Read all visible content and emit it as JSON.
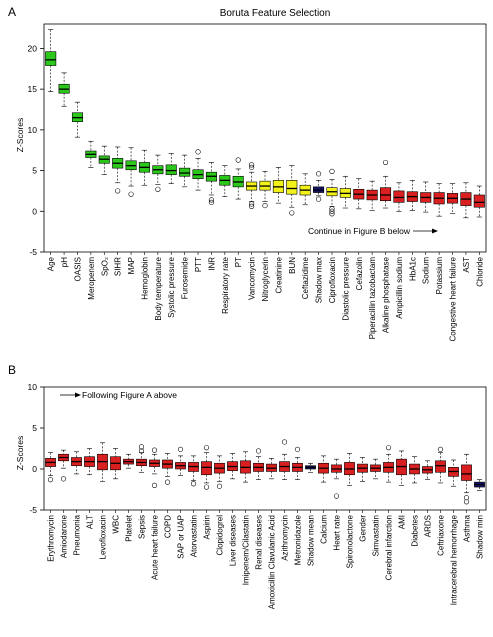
{
  "colors": {
    "green": "#2bc81b",
    "yellow": "#f2f21a",
    "red": "#d91f1f",
    "blue": "#12126b",
    "axis": "#000000"
  },
  "chart_data": [
    {
      "type": "box",
      "panel_label": "A",
      "title": "Boruta Feature Selection",
      "ylabel": "Z-Scores",
      "ylim": [
        -5,
        23
      ],
      "yticks": [
        -5,
        0,
        5,
        10,
        15,
        20
      ],
      "annotation": "Continue in Figure B below",
      "boxes": [
        {
          "name": "Age",
          "q1": 17.9,
          "median": 18.6,
          "q3": 19.6,
          "low": 14.7,
          "high": 22.3,
          "color": "green",
          "outliers": []
        },
        {
          "name": "pH",
          "q1": 14.5,
          "median": 15.0,
          "q3": 15.6,
          "low": 12.9,
          "high": 17.0,
          "color": "green",
          "outliers": []
        },
        {
          "name": "OASIS",
          "q1": 11.0,
          "median": 11.5,
          "q3": 12.1,
          "low": 9.1,
          "high": 13.4,
          "color": "green",
          "outliers": []
        },
        {
          "name": "Meropenem",
          "q1": 6.6,
          "median": 7.0,
          "q3": 7.4,
          "low": 5.4,
          "high": 8.6,
          "color": "green",
          "outliers": []
        },
        {
          "name": "SpO₂",
          "q1": 5.9,
          "median": 6.4,
          "q3": 6.8,
          "low": 4.5,
          "high": 8.0,
          "color": "green",
          "outliers": []
        },
        {
          "name": "SIHR",
          "q1": 5.3,
          "median": 5.9,
          "q3": 6.5,
          "low": 3.5,
          "high": 7.9,
          "color": "green",
          "outliers": [
            2.5
          ]
        },
        {
          "name": "MAP",
          "q1": 5.1,
          "median": 5.6,
          "q3": 6.2,
          "low": 3.1,
          "high": 7.8,
          "color": "green",
          "outliers": [
            2.1
          ]
        },
        {
          "name": "Hemoglobin",
          "q1": 4.8,
          "median": 5.4,
          "q3": 6.0,
          "low": 3.2,
          "high": 7.5,
          "color": "green",
          "outliers": []
        },
        {
          "name": "Body temperature",
          "q1": 4.6,
          "median": 5.1,
          "q3": 5.6,
          "low": 3.3,
          "high": 6.9,
          "color": "green",
          "outliers": [
            2.7
          ]
        },
        {
          "name": "Systolic pressure",
          "q1": 4.5,
          "median": 5.0,
          "q3": 5.7,
          "low": 3.4,
          "high": 7.1,
          "color": "green",
          "outliers": []
        },
        {
          "name": "Furosemide",
          "q1": 4.3,
          "median": 4.7,
          "q3": 5.3,
          "low": 3.0,
          "high": 6.9,
          "color": "green",
          "outliers": []
        },
        {
          "name": "PTT",
          "q1": 4.0,
          "median": 4.5,
          "q3": 5.1,
          "low": 2.6,
          "high": 6.5,
          "color": "green",
          "outliers": [
            7.3
          ]
        },
        {
          "name": "INR",
          "q1": 3.7,
          "median": 4.3,
          "q3": 4.8,
          "low": 2.0,
          "high": 6.0,
          "color": "green",
          "outliers": [
            1.4,
            1.1
          ]
        },
        {
          "name": "Respiratory rate",
          "q1": 3.2,
          "median": 3.8,
          "q3": 4.4,
          "low": 1.8,
          "high": 5.6,
          "color": "green",
          "outliers": []
        },
        {
          "name": "PT",
          "q1": 3.0,
          "median": 3.6,
          "q3": 4.3,
          "low": 1.5,
          "high": 5.2,
          "color": "green",
          "outliers": [
            6.3
          ]
        },
        {
          "name": "Vancomycin",
          "q1": 2.6,
          "median": 3.1,
          "q3": 3.6,
          "low": 1.2,
          "high": 4.8,
          "color": "yellow",
          "outliers": [
            5.4,
            5.7,
            0.9,
            0.6
          ]
        },
        {
          "name": "Nitroglycerin",
          "q1": 2.6,
          "median": 3.1,
          "q3": 3.7,
          "low": 1.2,
          "high": 4.9,
          "color": "yellow",
          "outliers": [
            0.7
          ]
        },
        {
          "name": "Creatinine",
          "q1": 2.3,
          "median": 3.0,
          "q3": 3.8,
          "low": 1.0,
          "high": 5.4,
          "color": "yellow",
          "outliers": []
        },
        {
          "name": "BUN",
          "q1": 2.1,
          "median": 2.8,
          "q3": 3.8,
          "low": 0.5,
          "high": 5.6,
          "color": "yellow",
          "outliers": [
            -0.2
          ]
        },
        {
          "name": "Ceftazidime",
          "q1": 2.0,
          "median": 2.6,
          "q3": 3.2,
          "low": 0.8,
          "high": 4.6,
          "color": "yellow",
          "outliers": []
        },
        {
          "name": "Shadow max",
          "q1": 2.3,
          "median": 2.6,
          "q3": 3.0,
          "low": 1.9,
          "high": 3.8,
          "color": "blue",
          "outliers": [
            1.5,
            4.6
          ]
        },
        {
          "name": "Ciprofloxacin",
          "q1": 1.9,
          "median": 2.4,
          "q3": 2.9,
          "low": 0.6,
          "high": 3.9,
          "color": "yellow",
          "outliers": [
            4.9,
            0.3,
            0.0,
            -0.3
          ]
        },
        {
          "name": "Diastolic pressure",
          "q1": 1.7,
          "median": 2.2,
          "q3": 2.8,
          "low": 0.4,
          "high": 4.3,
          "color": "yellow",
          "outliers": []
        },
        {
          "name": "Cefazolin",
          "q1": 1.5,
          "median": 2.1,
          "q3": 2.7,
          "low": 0.3,
          "high": 4.0,
          "color": "red",
          "outliers": []
        },
        {
          "name": "Piperacillin tazobactam",
          "q1": 1.4,
          "median": 2.0,
          "q3": 2.6,
          "low": 0.1,
          "high": 3.7,
          "color": "red",
          "outliers": []
        },
        {
          "name": "Alkaline phosphatase",
          "q1": 1.3,
          "median": 2.0,
          "q3": 2.9,
          "low": 0.4,
          "high": 4.3,
          "color": "red",
          "outliers": [
            6.0
          ]
        },
        {
          "name": "Ampicillin sodium",
          "q1": 1.1,
          "median": 1.7,
          "q3": 2.5,
          "low": 0.0,
          "high": 3.5,
          "color": "red",
          "outliers": []
        },
        {
          "name": "HbA1c",
          "q1": 1.2,
          "median": 1.8,
          "q3": 2.4,
          "low": 0.1,
          "high": 3.8,
          "color": "red",
          "outliers": []
        },
        {
          "name": "Sodium",
          "q1": 1.1,
          "median": 1.7,
          "q3": 2.3,
          "low": -0.1,
          "high": 3.6,
          "color": "red",
          "outliers": []
        },
        {
          "name": "Potassium",
          "q1": 0.9,
          "median": 1.6,
          "q3": 2.3,
          "low": -0.6,
          "high": 3.4,
          "color": "red",
          "outliers": []
        },
        {
          "name": "Congestive heart failure",
          "q1": 1.0,
          "median": 1.6,
          "q3": 2.2,
          "low": -0.3,
          "high": 3.4,
          "color": "red",
          "outliers": []
        },
        {
          "name": "AST",
          "q1": 0.7,
          "median": 1.5,
          "q3": 2.3,
          "low": -0.8,
          "high": 3.5,
          "color": "red",
          "outliers": []
        },
        {
          "name": "Chloride",
          "q1": 0.5,
          "median": 1.1,
          "q3": 2.0,
          "low": -0.7,
          "high": 3.1,
          "color": "red",
          "outliers": []
        }
      ]
    },
    {
      "type": "box",
      "panel_label": "B",
      "title": "",
      "ylabel": "Z-Scores",
      "ylim": [
        -5,
        10
      ],
      "yticks": [
        -5,
        0,
        5,
        10
      ],
      "annotation": "Following Figure A above",
      "boxes": [
        {
          "name": "Erythromycin",
          "q1": 0.3,
          "median": 0.8,
          "q3": 1.3,
          "low": -0.8,
          "high": 2.0,
          "color": "red",
          "outliers": [
            -1.3
          ]
        },
        {
          "name": "Amiodarone",
          "q1": 1.0,
          "median": 1.4,
          "q3": 1.8,
          "low": 0.1,
          "high": 2.3,
          "color": "red",
          "outliers": [
            -1.2
          ]
        },
        {
          "name": "Pneumonia",
          "q1": 0.4,
          "median": 0.9,
          "q3": 1.4,
          "low": -0.6,
          "high": 2.1,
          "color": "red",
          "outliers": []
        },
        {
          "name": "ALT",
          "q1": 0.3,
          "median": 0.9,
          "q3": 1.5,
          "low": -0.7,
          "high": 2.5,
          "color": "red",
          "outliers": []
        },
        {
          "name": "Levofloxacin",
          "q1": -0.1,
          "median": 0.9,
          "q3": 1.8,
          "low": -1.5,
          "high": 3.2,
          "color": "red",
          "outliers": []
        },
        {
          "name": "WBC",
          "q1": -0.1,
          "median": 0.7,
          "q3": 1.5,
          "low": -1.2,
          "high": 2.5,
          "color": "red",
          "outliers": []
        },
        {
          "name": "Platelet",
          "q1": 0.6,
          "median": 0.9,
          "q3": 1.2,
          "low": 0.1,
          "high": 1.8,
          "color": "red",
          "outliers": []
        },
        {
          "name": "Sepsis",
          "q1": 0.4,
          "median": 0.8,
          "q3": 1.2,
          "low": -0.4,
          "high": 2.0,
          "color": "red",
          "outliers": [
            2.7,
            2.2
          ]
        },
        {
          "name": "Acute heart failure",
          "q1": 0.3,
          "median": 0.7,
          "q3": 1.1,
          "low": -0.6,
          "high": 1.8,
          "color": "red",
          "outliers": [
            2.3,
            -2.0
          ]
        },
        {
          "name": "COPD",
          "q1": 0.1,
          "median": 0.6,
          "q3": 1.1,
          "low": -0.9,
          "high": 1.9,
          "color": "red",
          "outliers": [
            -1.6
          ]
        },
        {
          "name": "SAP or UAP",
          "q1": 0.0,
          "median": 0.4,
          "q3": 0.8,
          "low": -0.8,
          "high": 1.6,
          "color": "red",
          "outliers": [
            2.4
          ]
        },
        {
          "name": "Atorvastatin",
          "q1": -0.3,
          "median": 0.3,
          "q3": 0.8,
          "low": -1.4,
          "high": 1.6,
          "color": "red",
          "outliers": [
            -1.8
          ]
        },
        {
          "name": "Aspirin",
          "q1": -0.7,
          "median": 0.2,
          "q3": 0.9,
          "low": -1.7,
          "high": 2.0,
          "color": "red",
          "outliers": [
            2.6,
            -2.2
          ]
        },
        {
          "name": "Clopidogrel",
          "q1": -0.5,
          "median": 0.1,
          "q3": 0.7,
          "low": -1.5,
          "high": 1.6,
          "color": "red",
          "outliers": [
            -2.1
          ]
        },
        {
          "name": "Liver diseases",
          "q1": -0.2,
          "median": 0.3,
          "q3": 0.9,
          "low": -1.2,
          "high": 1.9,
          "color": "red",
          "outliers": []
        },
        {
          "name": "Imipenem/Cilastatin",
          "q1": -0.5,
          "median": 0.2,
          "q3": 1.0,
          "low": -1.6,
          "high": 2.1,
          "color": "red",
          "outliers": []
        },
        {
          "name": "Renal diseases",
          "q1": -0.3,
          "median": 0.2,
          "q3": 0.7,
          "low": -1.3,
          "high": 1.5,
          "color": "red",
          "outliers": [
            2.2
          ]
        },
        {
          "name": "Amoxicillin Clavulanic Acid",
          "q1": -0.3,
          "median": 0.1,
          "q3": 0.6,
          "low": -1.2,
          "high": 1.3,
          "color": "red",
          "outliers": []
        },
        {
          "name": "Azithromycin",
          "q1": -0.3,
          "median": 0.3,
          "q3": 0.9,
          "low": -1.3,
          "high": 1.8,
          "color": "red",
          "outliers": [
            3.3
          ]
        },
        {
          "name": "Metronidazole",
          "q1": -0.3,
          "median": 0.2,
          "q3": 0.7,
          "low": -1.3,
          "high": 1.4,
          "color": "red",
          "outliers": [
            2.4
          ]
        },
        {
          "name": "Shadow mean",
          "q1": 0.0,
          "median": 0.2,
          "q3": 0.4,
          "low": -0.4,
          "high": 0.7,
          "color": "blue",
          "outliers": []
        },
        {
          "name": "Calcium",
          "q1": -0.5,
          "median": 0.1,
          "q3": 0.7,
          "low": -1.6,
          "high": 1.6,
          "color": "red",
          "outliers": []
        },
        {
          "name": "Heart rate",
          "q1": -0.4,
          "median": 0.0,
          "q3": 0.5,
          "low": -1.2,
          "high": 1.2,
          "color": "red",
          "outliers": [
            -3.3
          ]
        },
        {
          "name": "Spironolactone",
          "q1": -0.7,
          "median": 0.0,
          "q3": 0.8,
          "low": -2.0,
          "high": 1.9,
          "color": "red",
          "outliers": []
        },
        {
          "name": "Gender",
          "q1": -0.4,
          "median": 0.1,
          "q3": 0.6,
          "low": -1.5,
          "high": 1.4,
          "color": "red",
          "outliers": []
        },
        {
          "name": "Simvastatin",
          "q1": -0.3,
          "median": 0.1,
          "q3": 0.5,
          "low": -1.2,
          "high": 1.2,
          "color": "red",
          "outliers": []
        },
        {
          "name": "Cerebral infarction",
          "q1": -0.4,
          "median": 0.2,
          "q3": 0.8,
          "low": -1.6,
          "high": 1.8,
          "color": "red",
          "outliers": [
            2.6
          ]
        },
        {
          "name": "AMI",
          "q1": -0.7,
          "median": 0.3,
          "q3": 1.2,
          "low": -2.0,
          "high": 2.2,
          "color": "red",
          "outliers": []
        },
        {
          "name": "Diabetes",
          "q1": -0.6,
          "median": 0.0,
          "q3": 0.6,
          "low": -1.7,
          "high": 1.5,
          "color": "red",
          "outliers": []
        },
        {
          "name": "ARDS",
          "q1": -0.5,
          "median": -0.1,
          "q3": 0.3,
          "low": -1.3,
          "high": 1.0,
          "color": "red",
          "outliers": []
        },
        {
          "name": "Ceftriaxone",
          "q1": -0.4,
          "median": 0.4,
          "q3": 1.0,
          "low": -1.7,
          "high": 2.0,
          "color": "red",
          "outliers": [
            2.4
          ]
        },
        {
          "name": "Intracerebral hemorrhage",
          "q1": -0.9,
          "median": -0.3,
          "q3": 0.2,
          "low": -2.1,
          "high": 1.1,
          "color": "red",
          "outliers": []
        },
        {
          "name": "Asthma",
          "q1": -1.4,
          "median": -0.6,
          "q3": 0.5,
          "low": -2.9,
          "high": 1.8,
          "color": "red",
          "outliers": [
            -3.5,
            -4.0
          ]
        },
        {
          "name": "Shadow min",
          "q1": -2.2,
          "median": -1.9,
          "q3": -1.6,
          "low": -2.6,
          "high": -1.3,
          "color": "blue",
          "outliers": []
        }
      ]
    }
  ]
}
